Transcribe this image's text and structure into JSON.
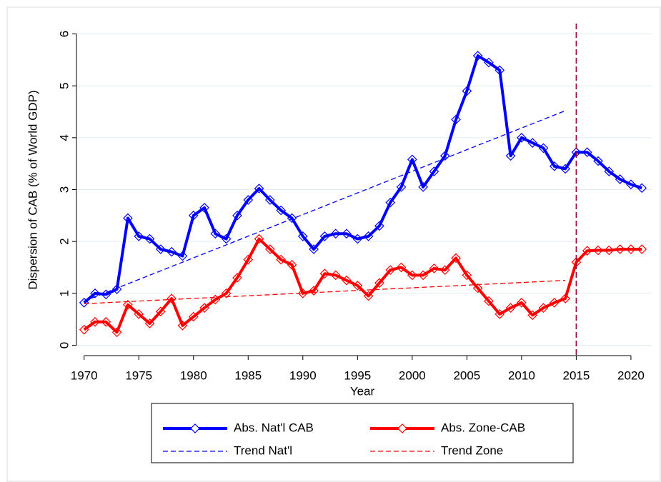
{
  "chart_data": {
    "type": "line",
    "xlabel": "Year",
    "ylabel": "Dispersion of CAB (% of World GDP)",
    "x": [
      1970,
      1971,
      1972,
      1973,
      1974,
      1975,
      1976,
      1977,
      1978,
      1979,
      1980,
      1981,
      1982,
      1983,
      1984,
      1985,
      1986,
      1987,
      1988,
      1989,
      1990,
      1991,
      1992,
      1993,
      1994,
      1995,
      1996,
      1997,
      1998,
      1999,
      2000,
      2001,
      2002,
      2003,
      2004,
      2005,
      2006,
      2007,
      2008,
      2009,
      2010,
      2011,
      2012,
      2013,
      2014,
      2015,
      2016,
      2017,
      2018,
      2019,
      2020,
      2021
    ],
    "series": [
      {
        "name": "Abs. Nat'l CAB",
        "color": "#0000ff",
        "style": "solid",
        "values": [
          0.82,
          1.0,
          0.98,
          1.08,
          2.45,
          2.1,
          2.05,
          1.85,
          1.8,
          1.72,
          2.5,
          2.65,
          2.15,
          2.05,
          2.5,
          2.8,
          3.02,
          2.8,
          2.6,
          2.45,
          2.1,
          1.85,
          2.1,
          2.15,
          2.15,
          2.05,
          2.1,
          2.3,
          2.75,
          3.05,
          3.58,
          3.05,
          3.35,
          3.65,
          4.35,
          4.9,
          5.58,
          5.45,
          5.3,
          3.65,
          4.0,
          3.9,
          3.8,
          3.45,
          3.4,
          3.72,
          3.72,
          3.55,
          3.35,
          3.2,
          3.1,
          3.03
        ]
      },
      {
        "name": "Abs. Zone-CAB",
        "color": "#ff0000",
        "style": "solid",
        "values": [
          0.3,
          0.45,
          0.45,
          0.25,
          0.78,
          0.6,
          0.42,
          0.65,
          0.9,
          0.38,
          0.55,
          0.72,
          0.88,
          1.0,
          1.3,
          1.65,
          2.05,
          1.85,
          1.65,
          1.55,
          1.0,
          1.05,
          1.38,
          1.35,
          1.25,
          1.15,
          0.95,
          1.2,
          1.45,
          1.5,
          1.35,
          1.35,
          1.48,
          1.45,
          1.68,
          1.35,
          1.1,
          0.85,
          0.6,
          0.72,
          0.82,
          0.58,
          0.72,
          0.82,
          0.9,
          1.6,
          1.82,
          1.83,
          1.83,
          1.85,
          1.85,
          1.85
        ]
      },
      {
        "name": "Trend Nat'l",
        "color": "#0000ff",
        "style": "dashed",
        "x": [
          1970,
          2014
        ],
        "values": [
          0.85,
          4.52
        ]
      },
      {
        "name": "Trend Zone",
        "color": "#ff0000",
        "style": "dashed",
        "x": [
          1970,
          2014
        ],
        "values": [
          0.8,
          1.25
        ]
      }
    ],
    "vline": {
      "x": 2015,
      "color": "#990033"
    },
    "xlim": [
      1969.3,
      2021.9
    ],
    "xticks": [
      1970,
      1975,
      1980,
      1985,
      1990,
      1995,
      2000,
      2005,
      2010,
      2015,
      2020
    ],
    "ylim": [
      -0.2,
      6.2
    ],
    "yticks": [
      0,
      1,
      2,
      3,
      4,
      5,
      6
    ],
    "grid": true
  }
}
